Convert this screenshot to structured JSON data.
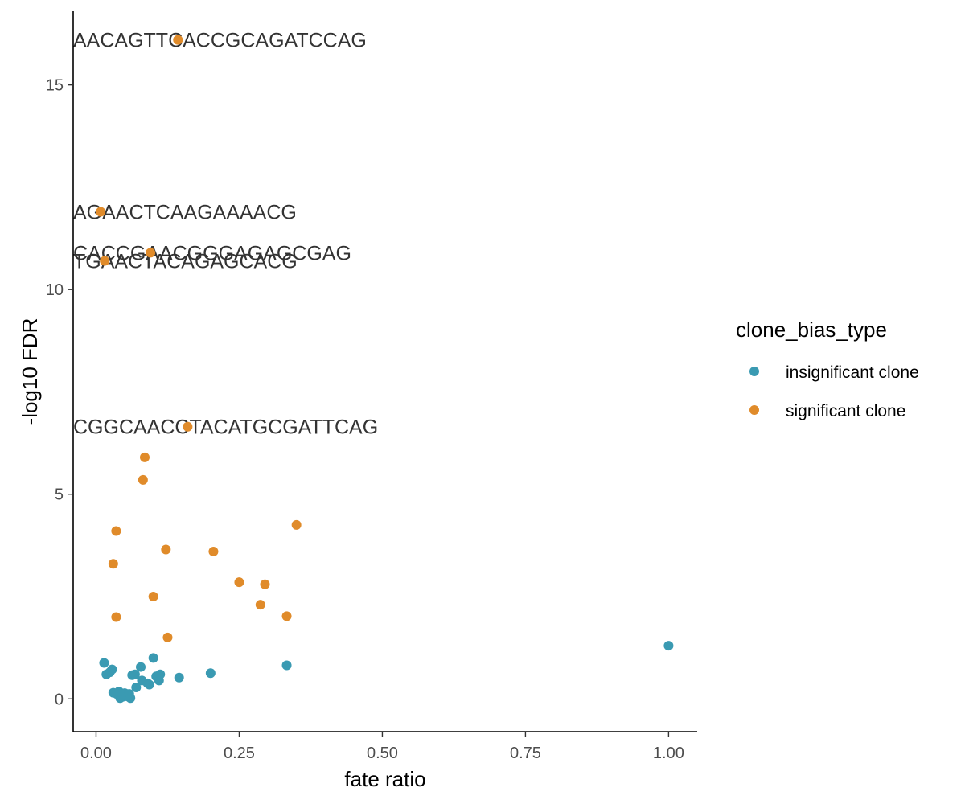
{
  "chart_data": {
    "type": "scatter",
    "xlabel": "fate ratio",
    "ylabel": "-log10 FDR",
    "xlim": [
      -0.04,
      1.05
    ],
    "ylim": [
      -0.8,
      16.8
    ],
    "xticks": [
      0.0,
      0.25,
      0.5,
      0.75,
      1.0
    ],
    "xtick_labels": [
      "0.00",
      "0.25",
      "0.50",
      "0.75",
      "1.00"
    ],
    "yticks": [
      0,
      5,
      10,
      15
    ],
    "ytick_labels": [
      "0",
      "5",
      "10",
      "15"
    ],
    "grid": false,
    "legend": {
      "title": "clone_bias_type",
      "position": "right",
      "entries": [
        {
          "label": "insignificant clone",
          "color": "#3a9ab2"
        },
        {
          "label": "significant clone",
          "color": "#e08b2a"
        }
      ]
    },
    "series": [
      {
        "name": "insignificant clone",
        "color": "#3a9ab2",
        "points": [
          {
            "x": 0.014,
            "y": 0.88
          },
          {
            "x": 0.018,
            "y": 0.6
          },
          {
            "x": 0.024,
            "y": 0.65
          },
          {
            "x": 0.028,
            "y": 0.72
          },
          {
            "x": 0.03,
            "y": 0.15
          },
          {
            "x": 0.036,
            "y": 0.12
          },
          {
            "x": 0.04,
            "y": 0.18
          },
          {
            "x": 0.042,
            "y": 0.02
          },
          {
            "x": 0.046,
            "y": 0.05
          },
          {
            "x": 0.05,
            "y": 0.14
          },
          {
            "x": 0.055,
            "y": 0.06
          },
          {
            "x": 0.058,
            "y": 0.12
          },
          {
            "x": 0.06,
            "y": 0.02
          },
          {
            "x": 0.063,
            "y": 0.58
          },
          {
            "x": 0.068,
            "y": 0.6
          },
          {
            "x": 0.07,
            "y": 0.28
          },
          {
            "x": 0.078,
            "y": 0.78
          },
          {
            "x": 0.08,
            "y": 0.45
          },
          {
            "x": 0.09,
            "y": 0.38
          },
          {
            "x": 0.093,
            "y": 0.35
          },
          {
            "x": 0.1,
            "y": 1.0
          },
          {
            "x": 0.105,
            "y": 0.55
          },
          {
            "x": 0.11,
            "y": 0.45
          },
          {
            "x": 0.112,
            "y": 0.6
          },
          {
            "x": 0.145,
            "y": 0.52
          },
          {
            "x": 0.2,
            "y": 0.63
          },
          {
            "x": 0.333,
            "y": 0.82
          },
          {
            "x": 1.0,
            "y": 1.3
          }
        ]
      },
      {
        "name": "significant clone",
        "color": "#e08b2a",
        "points": [
          {
            "x": 0.143,
            "y": 16.1,
            "label": "AACAGTTCACCGCAGATCCAG"
          },
          {
            "x": 0.008,
            "y": 11.9,
            "label": "AGAACTCAAGAAAACG"
          },
          {
            "x": 0.095,
            "y": 10.9,
            "label": "CACCGAACGGGAGAGCGAG"
          },
          {
            "x": 0.015,
            "y": 10.7,
            "label": "TGAACTACAGAGCACG"
          },
          {
            "x": 0.16,
            "y": 6.65,
            "label": "CGGCAACCTACATGCGATTCAG"
          },
          {
            "x": 0.085,
            "y": 5.9
          },
          {
            "x": 0.082,
            "y": 5.35
          },
          {
            "x": 0.035,
            "y": 4.1
          },
          {
            "x": 0.35,
            "y": 4.25
          },
          {
            "x": 0.122,
            "y": 3.65
          },
          {
            "x": 0.205,
            "y": 3.6
          },
          {
            "x": 0.03,
            "y": 3.3
          },
          {
            "x": 0.25,
            "y": 2.85
          },
          {
            "x": 0.295,
            "y": 2.8
          },
          {
            "x": 0.1,
            "y": 2.5
          },
          {
            "x": 0.287,
            "y": 2.3
          },
          {
            "x": 0.035,
            "y": 2.0
          },
          {
            "x": 0.333,
            "y": 2.02
          },
          {
            "x": 0.125,
            "y": 1.5
          }
        ]
      }
    ]
  }
}
